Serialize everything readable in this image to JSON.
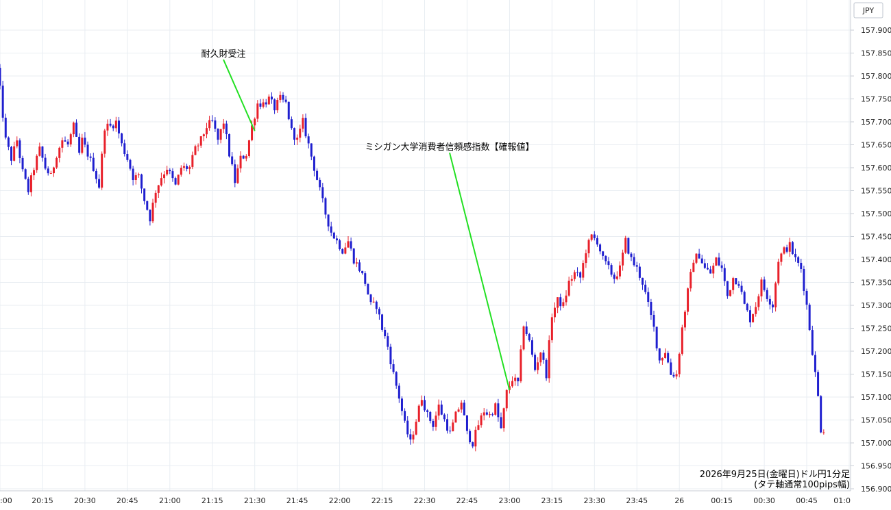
{
  "chart_data": {
    "type": "candlestick",
    "currency": "JPY",
    "note_line1": "2026年9月25日(金曜日)ドル円1分足",
    "note_line2": "(タテ軸通常100pips幅)",
    "ylim": [
      156.9,
      157.95
    ],
    "y_ticks": [
      "157.900",
      "157.850",
      "157.800",
      "157.750",
      "157.700",
      "157.650",
      "157.600",
      "157.550",
      "157.500",
      "157.450",
      "157.400",
      "157.350",
      "157.300",
      "157.250",
      "157.200",
      "157.150",
      "157.100",
      "157.050",
      "157.000",
      "156.950",
      "156.900"
    ],
    "x_ticks": [
      ":00",
      "20:15",
      "20:30",
      "20:45",
      "21:00",
      "21:15",
      "21:30",
      "21:45",
      "22:00",
      "22:15",
      "22:30",
      "22:45",
      "23:00",
      "23:15",
      "23:30",
      "23:45",
      "26",
      "00:15",
      "00:30",
      "00:45",
      "01:0"
    ],
    "up_color": "#e8202a",
    "down_color": "#1f1fcf",
    "annotation_line_color": "#22e022",
    "annotations": [
      {
        "text": "耐久財受注",
        "time": "21:30",
        "price": 157.68
      },
      {
        "text": "ミシガン大学消費者信頼感指数【確報値】",
        "time": "23:00",
        "price": 157.115
      }
    ],
    "price_path": [
      [
        "19:59",
        157.86
      ],
      [
        "20:01",
        157.77
      ],
      [
        "20:03",
        157.66
      ],
      [
        "20:05",
        157.62
      ],
      [
        "20:07",
        157.66
      ],
      [
        "20:09",
        157.59
      ],
      [
        "20:11",
        157.55
      ],
      [
        "20:13",
        157.6
      ],
      [
        "20:15",
        157.64
      ],
      [
        "20:17",
        157.6
      ],
      [
        "20:19",
        157.58
      ],
      [
        "20:21",
        157.63
      ],
      [
        "20:23",
        157.66
      ],
      [
        "20:25",
        157.65
      ],
      [
        "20:27",
        157.69
      ],
      [
        "20:29",
        157.63
      ],
      [
        "20:30",
        157.66
      ],
      [
        "20:32",
        157.63
      ],
      [
        "20:34",
        157.6
      ],
      [
        "20:36",
        157.56
      ],
      [
        "20:38",
        157.69
      ],
      [
        "20:40",
        157.69
      ],
      [
        "20:42",
        157.7
      ],
      [
        "20:44",
        157.65
      ],
      [
        "20:46",
        157.62
      ],
      [
        "20:48",
        157.58
      ],
      [
        "20:50",
        157.58
      ],
      [
        "20:52",
        157.53
      ],
      [
        "20:54",
        157.49
      ],
      [
        "20:56",
        157.55
      ],
      [
        "20:58",
        157.58
      ],
      [
        "21:00",
        157.6
      ],
      [
        "21:03",
        157.56
      ],
      [
        "21:05",
        157.6
      ],
      [
        "21:08",
        157.6
      ],
      [
        "21:10",
        157.64
      ],
      [
        "21:12",
        157.66
      ],
      [
        "21:14",
        157.69
      ],
      [
        "21:16",
        157.7
      ],
      [
        "21:18",
        157.66
      ],
      [
        "21:20",
        157.7
      ],
      [
        "21:22",
        157.63
      ],
      [
        "21:24",
        157.57
      ],
      [
        "21:26",
        157.62
      ],
      [
        "21:28",
        157.63
      ],
      [
        "21:30",
        157.69
      ],
      [
        "21:32",
        157.74
      ],
      [
        "21:34",
        157.74
      ],
      [
        "21:36",
        157.75
      ],
      [
        "21:38",
        157.73
      ],
      [
        "21:40",
        157.75
      ],
      [
        "21:42",
        157.74
      ],
      [
        "21:44",
        157.68
      ],
      [
        "21:46",
        157.66
      ],
      [
        "21:48",
        157.7
      ],
      [
        "21:50",
        157.65
      ],
      [
        "21:52",
        157.6
      ],
      [
        "21:54",
        157.55
      ],
      [
        "21:56",
        157.5
      ],
      [
        "21:58",
        157.46
      ],
      [
        "22:00",
        157.44
      ],
      [
        "22:02",
        157.42
      ],
      [
        "22:04",
        157.44
      ],
      [
        "22:06",
        157.4
      ],
      [
        "22:08",
        157.38
      ],
      [
        "22:10",
        157.35
      ],
      [
        "22:12",
        157.3
      ],
      [
        "22:14",
        157.3
      ],
      [
        "22:16",
        157.25
      ],
      [
        "22:18",
        157.21
      ],
      [
        "22:20",
        157.15
      ],
      [
        "22:22",
        157.1
      ],
      [
        "22:24",
        157.04
      ],
      [
        "22:26",
        157.0
      ],
      [
        "22:28",
        157.05
      ],
      [
        "22:30",
        157.1
      ],
      [
        "22:32",
        157.06
      ],
      [
        "22:34",
        157.04
      ],
      [
        "22:36",
        157.08
      ],
      [
        "22:38",
        157.05
      ],
      [
        "22:40",
        157.02
      ],
      [
        "22:42",
        157.06
      ],
      [
        "22:44",
        157.09
      ],
      [
        "22:46",
        157.02
      ],
      [
        "22:48",
        157.0
      ],
      [
        "22:50",
        157.04
      ],
      [
        "22:52",
        157.07
      ],
      [
        "22:54",
        157.06
      ],
      [
        "22:56",
        157.08
      ],
      [
        "22:58",
        157.03
      ],
      [
        "23:00",
        157.11
      ],
      [
        "23:02",
        157.14
      ],
      [
        "23:04",
        157.13
      ],
      [
        "23:06",
        157.26
      ],
      [
        "23:08",
        157.22
      ],
      [
        "23:10",
        157.16
      ],
      [
        "23:12",
        157.2
      ],
      [
        "23:14",
        157.15
      ],
      [
        "23:16",
        157.28
      ],
      [
        "23:18",
        157.31
      ],
      [
        "23:20",
        157.3
      ],
      [
        "23:22",
        157.35
      ],
      [
        "23:24",
        157.37
      ],
      [
        "23:26",
        157.36
      ],
      [
        "23:28",
        157.42
      ],
      [
        "23:30",
        157.45
      ],
      [
        "23:32",
        157.44
      ],
      [
        "23:34",
        157.4
      ],
      [
        "23:36",
        157.38
      ],
      [
        "23:38",
        157.36
      ],
      [
        "23:40",
        157.38
      ],
      [
        "23:42",
        157.44
      ],
      [
        "23:44",
        157.4
      ],
      [
        "23:46",
        157.38
      ],
      [
        "23:48",
        157.35
      ],
      [
        "23:50",
        157.3
      ],
      [
        "23:52",
        157.25
      ],
      [
        "23:54",
        157.18
      ],
      [
        "23:56",
        157.2
      ],
      [
        "23:58",
        157.15
      ],
      [
        "00:00",
        157.15
      ],
      [
        "00:02",
        157.25
      ],
      [
        "00:04",
        157.33
      ],
      [
        "00:06",
        157.4
      ],
      [
        "00:08",
        157.41
      ],
      [
        "00:10",
        157.38
      ],
      [
        "00:12",
        157.37
      ],
      [
        "00:14",
        157.4
      ],
      [
        "00:16",
        157.38
      ],
      [
        "00:18",
        157.32
      ],
      [
        "00:20",
        157.36
      ],
      [
        "00:22",
        157.35
      ],
      [
        "00:24",
        157.3
      ],
      [
        "00:26",
        157.27
      ],
      [
        "00:28",
        157.3
      ],
      [
        "00:30",
        157.35
      ],
      [
        "00:32",
        157.32
      ],
      [
        "00:34",
        157.3
      ],
      [
        "00:36",
        157.4
      ],
      [
        "00:38",
        157.42
      ],
      [
        "00:40",
        157.43
      ],
      [
        "00:42",
        157.4
      ],
      [
        "00:44",
        157.38
      ],
      [
        "00:46",
        157.3
      ],
      [
        "00:48",
        157.2
      ],
      [
        "00:50",
        157.1
      ],
      [
        "00:51",
        157.03
      ]
    ]
  }
}
